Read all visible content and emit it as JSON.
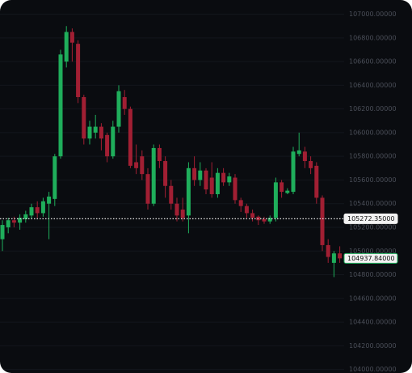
{
  "chart_data": {
    "type": "candlestick",
    "ylim": [
      103970,
      107120
    ],
    "yticks": [
      {
        "value": 107000,
        "label": "107000.00000"
      },
      {
        "value": 106800,
        "label": "106800.00000"
      },
      {
        "value": 106600,
        "label": "106600.00000"
      },
      {
        "value": 106400,
        "label": "106400.00000"
      },
      {
        "value": 106200,
        "label": "106200.00000"
      },
      {
        "value": 106000,
        "label": "106000.00000"
      },
      {
        "value": 105800,
        "label": "105800.00000"
      },
      {
        "value": 105600,
        "label": "105600.00000"
      },
      {
        "value": 105400,
        "label": "105400.00000"
      },
      {
        "value": 105200,
        "label": "105200.00000"
      },
      {
        "value": 105000,
        "label": "105000.00000"
      },
      {
        "value": 104800,
        "label": "104800.00000"
      },
      {
        "value": 104600,
        "label": "104600.00000"
      },
      {
        "value": 104400,
        "label": "104400.00000"
      },
      {
        "value": 104200,
        "label": "104200.00000"
      },
      {
        "value": 104000,
        "label": "104000.00000"
      }
    ],
    "grid": true,
    "up_color": "#1fae5b",
    "down_color": "#a11f33",
    "open": [
      105100,
      105200,
      105260,
      105240,
      105270,
      105300,
      105370,
      105320,
      105400,
      105440,
      105800,
      106600,
      106850,
      106750,
      106300,
      105950,
      106000,
      106050,
      105980,
      105800,
      106050,
      106300,
      106200,
      105750,
      105800,
      105650,
      105400,
      105870,
      105760,
      105550,
      105400,
      105350,
      105300,
      105700,
      105600,
      105680,
      105620,
      105480,
      105660,
      105580,
      105620,
      105430,
      105380,
      105320,
      105290,
      105270,
      105250,
      105280,
      105580,
      105490,
      105500,
      105820,
      105840,
      105760,
      105720,
      105450,
      105050,
      104900,
      104980
    ],
    "high": [
      105260,
      105280,
      105290,
      105310,
      105340,
      105400,
      105420,
      105450,
      105500,
      105820,
      106700,
      106900,
      106880,
      106780,
      106320,
      106100,
      106150,
      106080,
      106000,
      106100,
      106400,
      106360,
      106220,
      105900,
      105850,
      105700,
      105900,
      105900,
      105800,
      105600,
      105450,
      105450,
      105750,
      105800,
      105750,
      105700,
      105750,
      105700,
      105700,
      105660,
      105650,
      105450,
      105400,
      105350,
      105300,
      105290,
      105300,
      105620,
      105600,
      105530,
      105880,
      106000,
      105880,
      105800,
      105750,
      105470,
      105100,
      105000,
      105040
    ],
    "low": [
      105000,
      105150,
      105200,
      105180,
      105240,
      105270,
      105280,
      105290,
      105100,
      105380,
      105780,
      106550,
      106600,
      106250,
      105900,
      105900,
      105950,
      105850,
      105750,
      105780,
      106000,
      106150,
      105700,
      105650,
      105600,
      105350,
      105380,
      105700,
      105450,
      105350,
      105250,
      105250,
      105150,
      105550,
      105550,
      105480,
      105450,
      105450,
      105550,
      105550,
      105400,
      105330,
      105280,
      105250,
      105220,
      105230,
      105230,
      105250,
      105450,
      105480,
      105480,
      105800,
      105700,
      105650,
      105400,
      105000,
      104900,
      104780,
      104900
    ],
    "close": [
      105220,
      105260,
      105240,
      105280,
      105310,
      105370,
      105320,
      105420,
      105460,
      105800,
      106660,
      106850,
      106760,
      106300,
      105950,
      106050,
      106050,
      105950,
      105800,
      106050,
      106350,
      106200,
      105720,
      105700,
      105650,
      105400,
      105870,
      105760,
      105550,
      105400,
      105300,
      105280,
      105700,
      105600,
      105680,
      105520,
      105480,
      105660,
      105580,
      105630,
      105430,
      105380,
      105320,
      105280,
      105260,
      105250,
      105280,
      105580,
      105500,
      105510,
      105840,
      105850,
      105760,
      105700,
      105450,
      105050,
      104950,
      104980,
      104937.84
    ],
    "price_lines": [
      {
        "value": 105272.35,
        "label": "105272.35000"
      },
      {
        "value": 104937.84,
        "label": "104937.84000"
      }
    ]
  }
}
